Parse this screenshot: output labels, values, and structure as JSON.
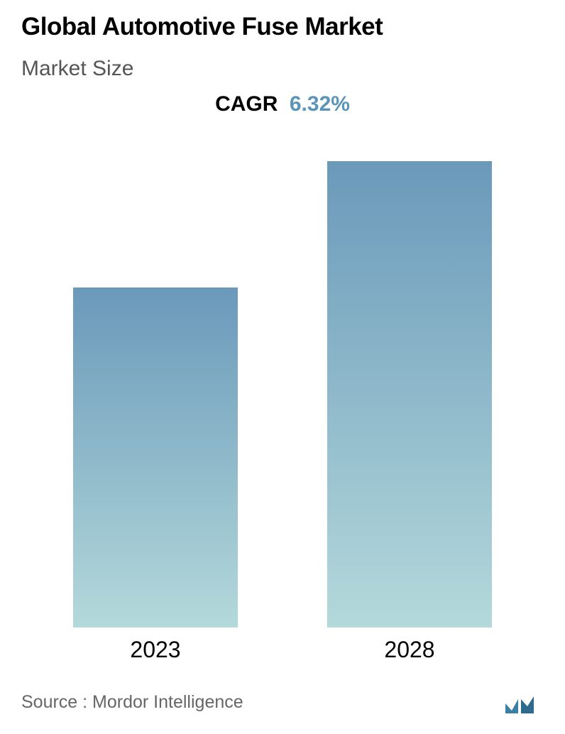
{
  "title": "Global Automotive Fuse Market",
  "subtitle": "Market Size",
  "cagr": {
    "label": "CAGR",
    "value": "6.32%",
    "value_color": "#5a94b8"
  },
  "chart": {
    "type": "bar",
    "categories": [
      "2023",
      "2028"
    ],
    "values": [
      70,
      96
    ],
    "ylim": [
      0,
      100
    ],
    "bar_width_pct": 65,
    "bar_gradient_top": "#6a99ba",
    "bar_gradient_bottom": "#b4d9db",
    "background_color": "#ffffff",
    "category_fontsize": 32,
    "category_color": "#000000"
  },
  "typography": {
    "title_fontsize": 35,
    "title_weight": 600,
    "subtitle_fontsize": 30,
    "subtitle_color": "#555555",
    "cagr_fontsize": 30,
    "source_fontsize": 25,
    "source_color": "#666666"
  },
  "source_text": "Source :  Mordor Intelligence",
  "logo": {
    "colors": [
      "#3a7fa6",
      "#2e6a8f"
    ],
    "width": 56,
    "height": 28
  }
}
